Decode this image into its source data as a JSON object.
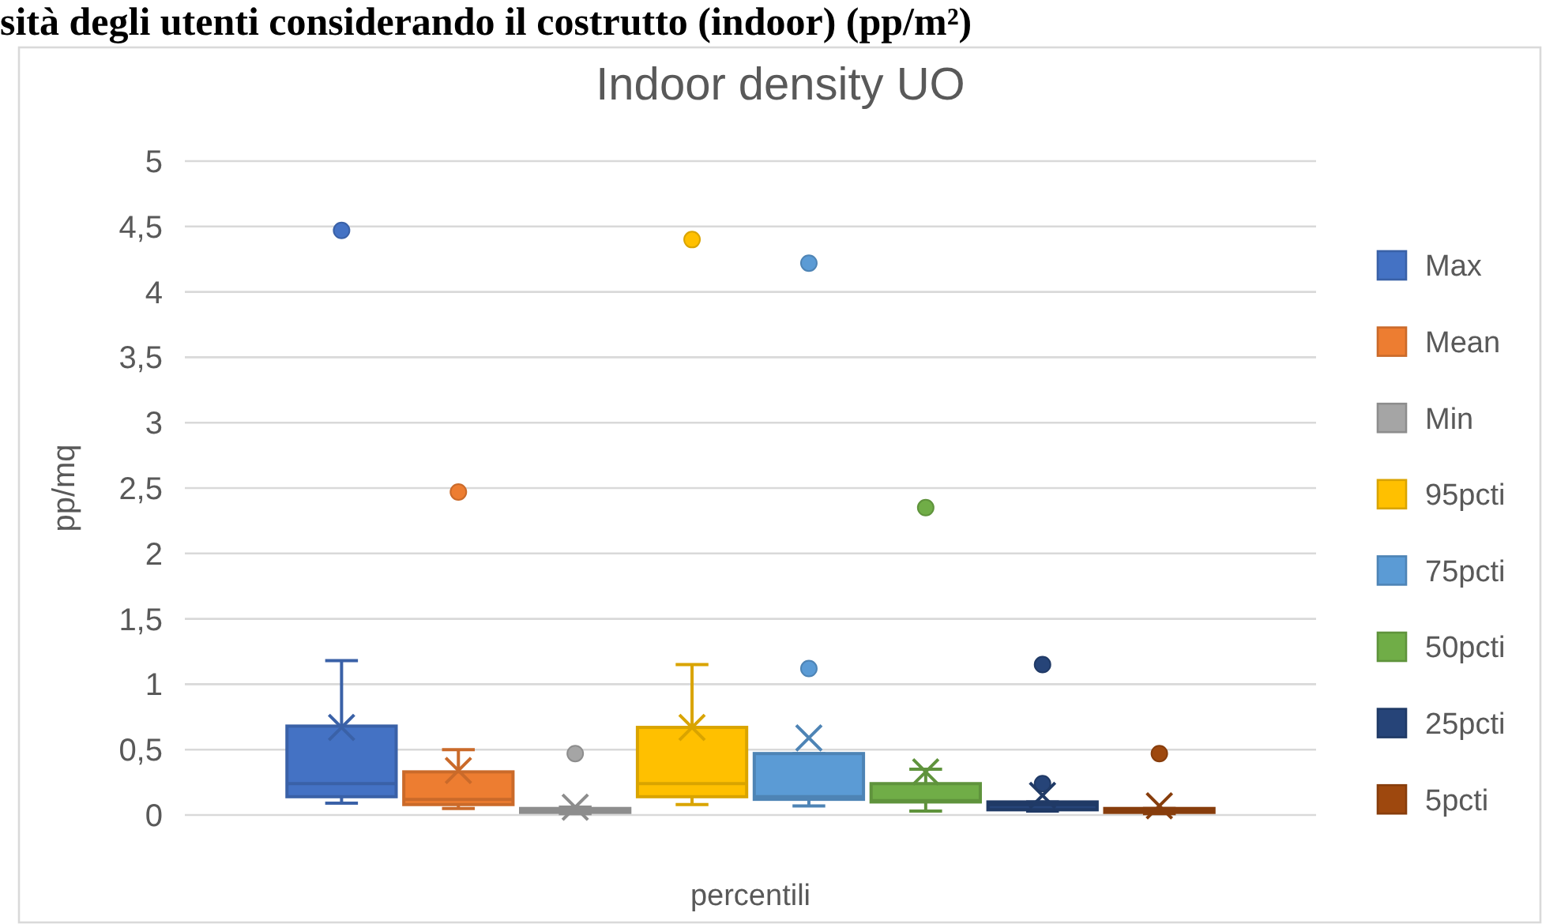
{
  "chart_data": {
    "type": "box",
    "title": "Indoor density UO",
    "ylabel": "pp/mq",
    "annotations": [
      "sità degli utenti considerando il costrutto (indoor) (pp/m²)"
    ],
    "categories": [
      "percentili"
    ],
    "series": [
      {
        "name": "Max",
        "color": "#4472c4",
        "boxes": [
          {
            "low": 0.09,
            "q1": 0.14,
            "median": 0.24,
            "q3": 0.68,
            "high": 1.18,
            "mean": 0.67,
            "outliers": [
              4.47
            ]
          }
        ]
      },
      {
        "name": "Mean",
        "color": "#ed7d31",
        "boxes": [
          {
            "low": 0.05,
            "q1": 0.08,
            "median": 0.12,
            "q3": 0.33,
            "high": 0.5,
            "mean": 0.34,
            "outliers": [
              2.47
            ]
          }
        ]
      },
      {
        "name": "Min",
        "color": "#a5a5a5",
        "boxes": [
          {
            "low": 0.01,
            "q1": 0.02,
            "median": 0.03,
            "q3": 0.05,
            "high": 0.06,
            "mean": 0.06,
            "outliers": [
              0.47
            ]
          }
        ]
      },
      {
        "name": "95pcti",
        "color": "#ffc000",
        "boxes": [
          {
            "low": 0.08,
            "q1": 0.14,
            "median": 0.24,
            "q3": 0.67,
            "high": 1.15,
            "mean": 0.67,
            "outliers": [
              4.4
            ]
          }
        ]
      },
      {
        "name": "75pcti",
        "color": "#5b9bd5",
        "boxes": [
          {
            "low": 0.07,
            "q1": 0.12,
            "median": 0.14,
            "q3": 0.47,
            "high": 0.47,
            "mean": 0.59,
            "outliers": [
              1.12,
              4.22
            ]
          }
        ]
      },
      {
        "name": "50pcti",
        "color": "#70ad47",
        "boxes": [
          {
            "low": 0.03,
            "q1": 0.1,
            "median": 0.11,
            "q3": 0.24,
            "high": 0.35,
            "mean": 0.33,
            "outliers": [
              2.35
            ]
          }
        ]
      },
      {
        "name": "25pcti",
        "color": "#264478",
        "boxes": [
          {
            "low": 0.03,
            "q1": 0.04,
            "median": 0.08,
            "q3": 0.1,
            "high": 0.1,
            "mean": 0.15,
            "outliers": [
              0.24,
              1.15
            ]
          }
        ]
      },
      {
        "name": "5pcti",
        "color": "#9e480e",
        "boxes": [
          {
            "low": 0.01,
            "q1": 0.02,
            "median": 0.04,
            "q3": 0.05,
            "high": 0.05,
            "mean": 0.07,
            "outliers": [
              0.47
            ]
          }
        ]
      }
    ],
    "ylim": [
      0,
      5
    ],
    "yticks": [
      0,
      {
        "value": 0.5,
        "label": "0,5"
      },
      1,
      {
        "value": 1.5,
        "label": "1,5"
      },
      2,
      {
        "value": 2.5,
        "label": "2,5"
      },
      3,
      {
        "value": 3.5,
        "label": "3,5"
      },
      4,
      {
        "value": 4.5,
        "label": "4,5"
      },
      5
    ],
    "grid": "y",
    "legend": "right"
  }
}
